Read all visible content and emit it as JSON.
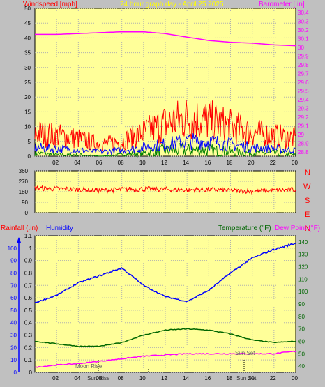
{
  "header": {
    "left_title": "Windspeed [mph]",
    "center_title": "24 hour graph day - April 25 2025",
    "right_title": "Barometer [.in]"
  },
  "lower_header": {
    "rainfall_label": "Rainfall (.in)",
    "humidity_label": "Humidity",
    "temperature_label": "Temperature (°F)",
    "dewpoint_label": "Dew Point (°F)"
  },
  "direction_labels": [
    "N",
    "W",
    "S",
    "E",
    "N"
  ],
  "annotations": {
    "moon_rise": "Moon Rise",
    "sun_rise": "Sun Rise",
    "sun_set_top": "Sun Set",
    "sun_set_bottom": "Sun Set"
  },
  "colors": {
    "background": "#c0c0c0",
    "plot": "#ffff99",
    "grid": "#b0b0b0",
    "wind_gust": "#ff0000",
    "wind_avg": "#0000ff",
    "wind_low": "#008000",
    "barometer": "#ff00ff",
    "direction": "#ff0000",
    "humidity": "#0000ff",
    "temperature": "#006600",
    "dewpoint": "#ff00ff",
    "rain_axis": "#ff0000",
    "title": "#ffff00"
  },
  "chart_data": [
    {
      "type": "line",
      "name": "wind-barometer",
      "x_ticks": [
        "02",
        "04",
        "06",
        "08",
        "10",
        "12",
        "14",
        "16",
        "18",
        "20",
        "22",
        "00"
      ],
      "windspeed_ticks": [
        "0",
        "5",
        "10",
        "15",
        "20",
        "25",
        "30",
        "35",
        "40",
        "45",
        "50"
      ],
      "barometer_ticks": [
        "28.8",
        "28.9",
        "29",
        "29.1",
        "29.2",
        "29.3",
        "29.4",
        "29.5",
        "29.6",
        "29.7",
        "29.8",
        "29.9",
        "30",
        "30.1",
        "30.2",
        "30.3",
        "30.4"
      ],
      "ylim_wind": [
        0,
        50
      ],
      "ylim_barometer": [
        28.75,
        30.45
      ],
      "x_hours": [
        0,
        2,
        4,
        6,
        8,
        10,
        12,
        14,
        16,
        18,
        20,
        22,
        24
      ],
      "series": [
        {
          "name": "Barometer",
          "values": [
            30.15,
            30.15,
            30.16,
            30.17,
            30.18,
            30.18,
            30.16,
            30.12,
            30.08,
            30.06,
            30.05,
            30.03,
            30.02
          ]
        },
        {
          "name": "Gust",
          "values": [
            8,
            7,
            6,
            4,
            5,
            8,
            11,
            13,
            12,
            10,
            8,
            7,
            6
          ]
        },
        {
          "name": "Average",
          "values": [
            3,
            2.5,
            2,
            1.5,
            2,
            3,
            4,
            5,
            5,
            4,
            3,
            2.5,
            2
          ]
        },
        {
          "name": "Low",
          "values": [
            1,
            0.5,
            0.5,
            0,
            0.5,
            1,
            2,
            2,
            2,
            1.5,
            1,
            1,
            0.5
          ]
        }
      ]
    },
    {
      "type": "line",
      "name": "wind-direction",
      "y_ticks": [
        "360",
        "270",
        "180",
        "90",
        "0"
      ],
      "ylim": [
        0,
        360
      ],
      "x_hours": [
        0,
        2,
        4,
        6,
        8,
        10,
        12,
        14,
        16,
        18,
        20,
        22,
        24
      ],
      "series": [
        {
          "name": "Direction",
          "values": [
            210,
            205,
            200,
            190,
            200,
            205,
            200,
            195,
            200,
            190,
            185,
            190,
            200
          ]
        }
      ]
    },
    {
      "type": "line",
      "name": "rain-humidity-temperature",
      "x_ticks": [
        "02",
        "04",
        "06",
        "08",
        "10",
        "12",
        "14",
        "16",
        "18",
        "20",
        "22",
        "00"
      ],
      "rainfall_ticks": [
        "0",
        "0.1",
        "0.2",
        "0.3",
        "0.4",
        "0.5",
        "0.6",
        "0.7",
        "0.8",
        "0.9",
        "1",
        "1.1"
      ],
      "humidity_ticks": [
        "0",
        "10",
        "20",
        "30",
        "40",
        "50",
        "60",
        "70",
        "80",
        "90",
        "100"
      ],
      "temperature_ticks": [
        "40",
        "50",
        "60",
        "70",
        "80",
        "90",
        "100",
        "110",
        "120",
        "130",
        "140"
      ],
      "ylim_humidity": [
        0,
        110
      ],
      "ylim_temperature": [
        35,
        145
      ],
      "x_hours": [
        0,
        2,
        4,
        6,
        8,
        10,
        12,
        14,
        16,
        18,
        20,
        22,
        24
      ],
      "series": [
        {
          "name": "Humidity",
          "values": [
            56,
            62,
            72,
            78,
            84,
            70,
            61,
            57,
            66,
            80,
            92,
            99,
            104
          ]
        },
        {
          "name": "Temperature",
          "values": [
            60,
            58,
            56,
            56,
            59,
            65,
            69,
            70,
            69,
            66,
            61,
            59,
            60
          ]
        },
        {
          "name": "Dew Point",
          "values": [
            39,
            41,
            42,
            44,
            46,
            48,
            49,
            50,
            50,
            50,
            50,
            50,
            52
          ]
        }
      ]
    }
  ]
}
